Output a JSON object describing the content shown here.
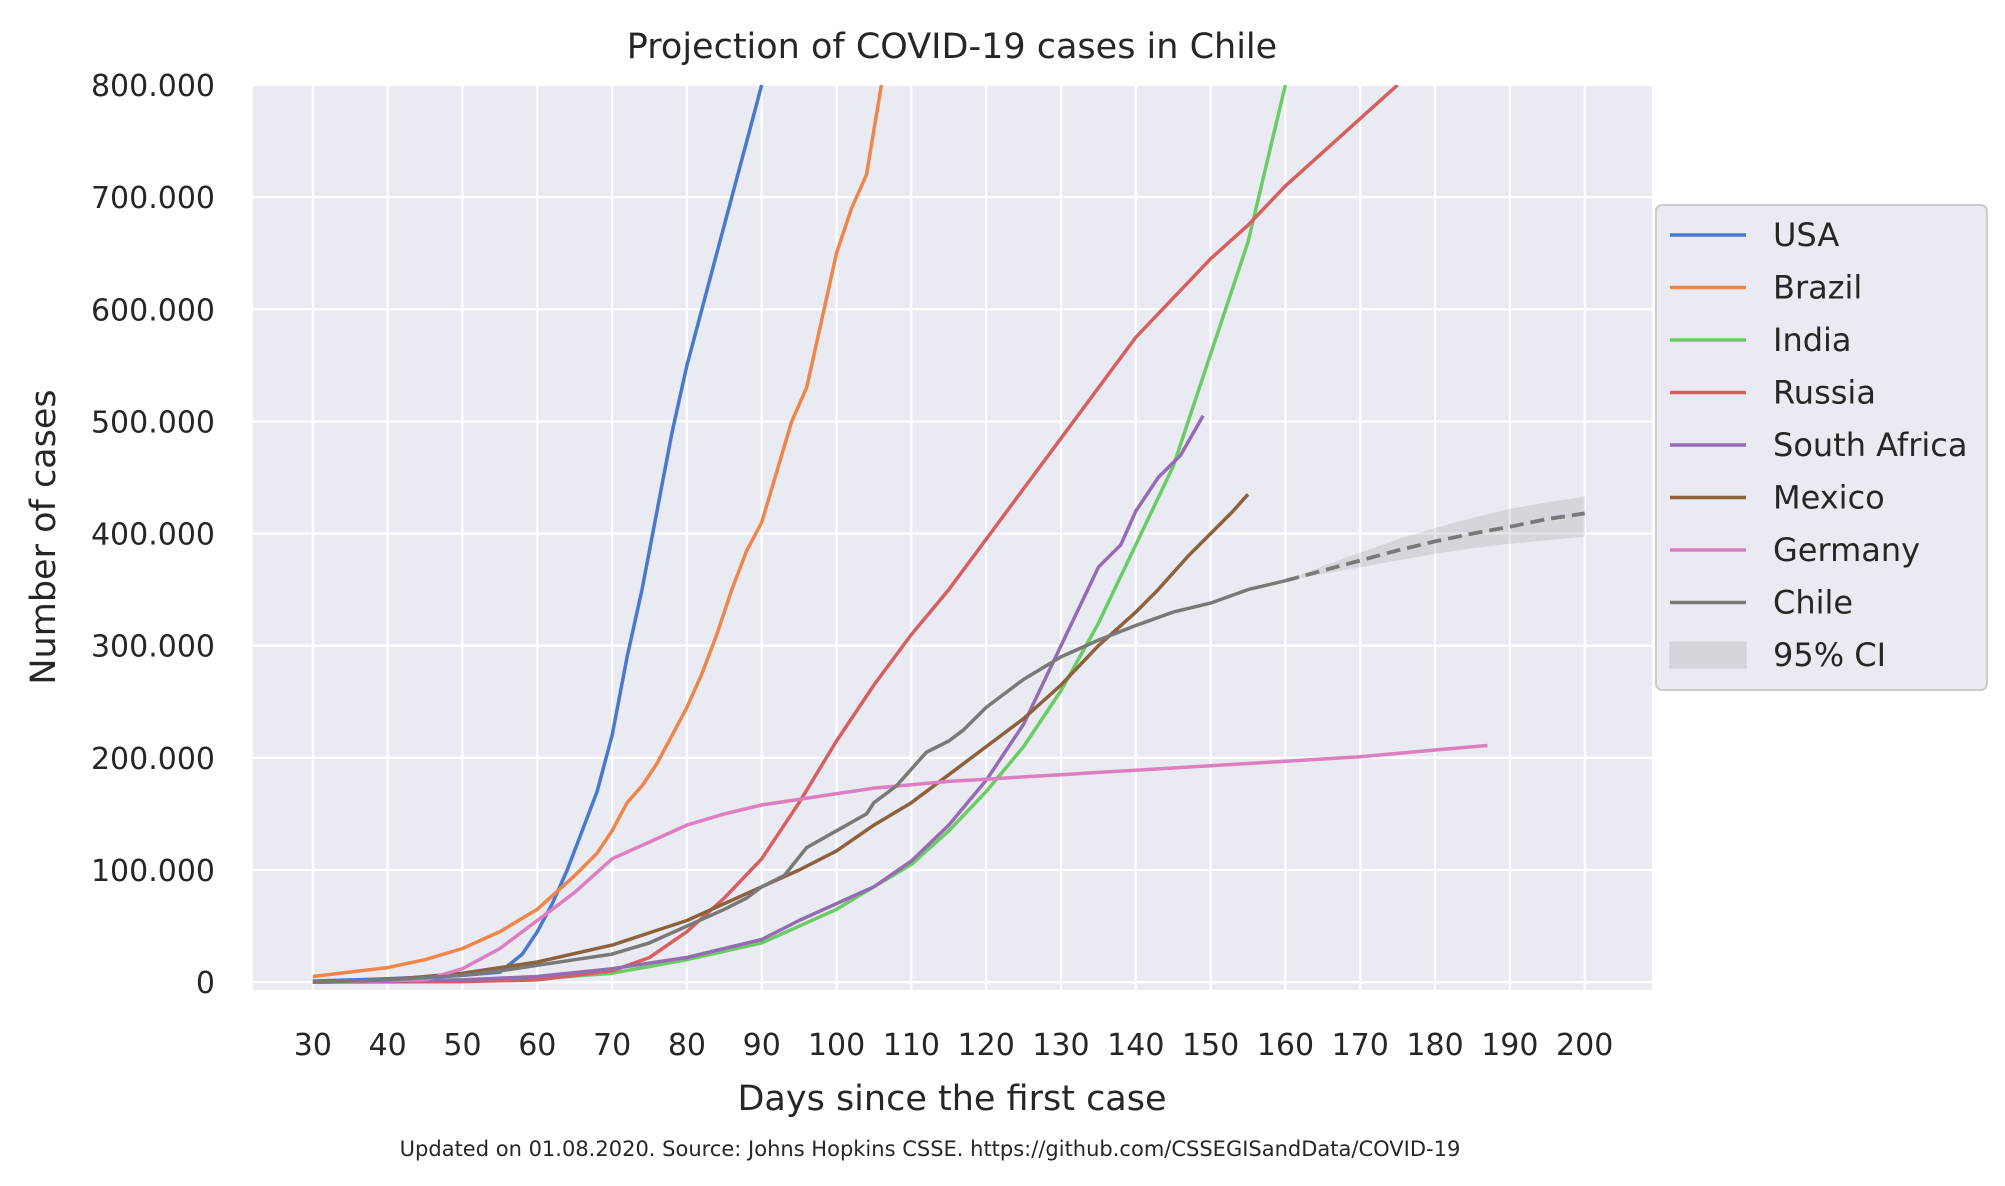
{
  "chart_data": {
    "type": "line",
    "title": "Projection of COVID-19 cases in Chile",
    "xlabel": "Days since the first case",
    "ylabel": "Number of cases",
    "footnote": "Updated on 01.08.2020. Source: Johns Hopkins CSSE. https://github.com/CSSEGISandData/COVID-19",
    "xlim": [
      22,
      209
    ],
    "ylim": [
      -7000,
      800000
    ],
    "x_ticks": [
      30,
      40,
      50,
      60,
      70,
      80,
      90,
      100,
      110,
      120,
      130,
      140,
      150,
      160,
      170,
      180,
      190,
      200
    ],
    "x_tick_labels": [
      "30",
      "40",
      "50",
      "60",
      "70",
      "80",
      "90",
      "100",
      "110",
      "120",
      "130",
      "140",
      "150",
      "160",
      "170",
      "180",
      "190",
      "200"
    ],
    "y_ticks": [
      0,
      100000,
      200000,
      300000,
      400000,
      500000,
      600000,
      700000,
      800000
    ],
    "y_tick_labels": [
      "0",
      "100.000",
      "200.000",
      "300.000",
      "400.000",
      "500.000",
      "600.000",
      "700.000",
      "800.000"
    ],
    "grid": true,
    "legend_position": "right-outside",
    "series": [
      {
        "name": "USA",
        "color": "#4878d0",
        "x": [
          30,
          40,
          50,
          55,
          58,
          60,
          62,
          64,
          66,
          68,
          70,
          72,
          74,
          76,
          78,
          80,
          82,
          84,
          86,
          88,
          90
        ],
        "y": [
          1000,
          3000,
          6000,
          9000,
          25000,
          45000,
          70000,
          100000,
          135000,
          170000,
          220000,
          290000,
          350000,
          420000,
          490000,
          550000,
          600000,
          650000,
          700000,
          750000,
          800000
        ]
      },
      {
        "name": "Brazil",
        "color": "#ee854a",
        "x": [
          30,
          40,
          45,
          50,
          55,
          60,
          65,
          68,
          70,
          72,
          74,
          76,
          78,
          80,
          82,
          84,
          86,
          88,
          90,
          92,
          94,
          96,
          98,
          100,
          102,
          104,
          106
        ],
        "y": [
          5000,
          13000,
          20000,
          30000,
          45000,
          65000,
          95000,
          115000,
          135000,
          160000,
          175000,
          195000,
          220000,
          245000,
          275000,
          310000,
          350000,
          385000,
          410000,
          455000,
          500000,
          530000,
          590000,
          650000,
          690000,
          720000,
          800000
        ]
      },
      {
        "name": "India",
        "color": "#6acc64",
        "x": [
          30,
          60,
          70,
          80,
          90,
          95,
          100,
          105,
          110,
          115,
          120,
          125,
          130,
          135,
          140,
          145,
          150,
          155,
          160
        ],
        "y": [
          0,
          3000,
          8000,
          20000,
          35000,
          50000,
          65000,
          85000,
          105000,
          135000,
          170000,
          210000,
          260000,
          320000,
          390000,
          460000,
          560000,
          660000,
          800000
        ]
      },
      {
        "name": "Russia",
        "color": "#d65f5f",
        "x": [
          30,
          50,
          60,
          70,
          75,
          80,
          85,
          90,
          95,
          100,
          105,
          110,
          115,
          120,
          125,
          130,
          135,
          140,
          145,
          150,
          155,
          160,
          165,
          170,
          175
        ],
        "y": [
          0,
          500,
          2000,
          10000,
          22000,
          45000,
          75000,
          110000,
          160000,
          215000,
          265000,
          310000,
          350000,
          395000,
          440000,
          485000,
          530000,
          575000,
          610000,
          645000,
          675000,
          710000,
          740000,
          770000,
          800000
        ]
      },
      {
        "name": "South Africa",
        "color": "#956cb4",
        "x": [
          30,
          50,
          60,
          70,
          80,
          90,
          95,
          100,
          105,
          110,
          115,
          120,
          125,
          130,
          135,
          138,
          140,
          143,
          146,
          149
        ],
        "y": [
          0,
          2000,
          5000,
          12000,
          22000,
          38000,
          55000,
          70000,
          85000,
          108000,
          140000,
          180000,
          230000,
          300000,
          370000,
          390000,
          420000,
          450000,
          470000,
          505000
        ]
      },
      {
        "name": "Mexico",
        "color": "#8c613c",
        "x": [
          30,
          40,
          50,
          60,
          70,
          80,
          90,
          95,
          100,
          105,
          110,
          115,
          120,
          125,
          130,
          135,
          140,
          143,
          147,
          150,
          153,
          155
        ],
        "y": [
          0,
          2000,
          8000,
          18000,
          33000,
          55000,
          85000,
          100000,
          117000,
          140000,
          160000,
          185000,
          210000,
          235000,
          265000,
          300000,
          330000,
          350000,
          380000,
          400000,
          420000,
          435000
        ]
      },
      {
        "name": "Germany",
        "color": "#dc7ec0",
        "x": [
          30,
          45,
          50,
          55,
          60,
          62,
          65,
          70,
          75,
          80,
          85,
          90,
          95,
          100,
          105,
          110,
          115,
          120,
          125,
          130,
          135,
          140,
          145,
          150,
          155,
          160,
          165,
          170,
          175,
          180,
          187
        ],
        "y": [
          0,
          2000,
          12000,
          30000,
          55000,
          65000,
          80000,
          110000,
          125000,
          140000,
          150000,
          158000,
          163000,
          168000,
          173000,
          176000,
          179000,
          181000,
          183000,
          185000,
          187000,
          189000,
          191000,
          193000,
          195000,
          197000,
          199000,
          201000,
          204000,
          207000,
          211000
        ]
      },
      {
        "name": "Chile",
        "color": "#797979",
        "x": [
          30,
          40,
          50,
          55,
          60,
          65,
          70,
          75,
          80,
          85,
          88,
          90,
          93,
          96,
          100,
          104,
          105,
          108,
          110,
          112,
          115,
          117,
          120,
          125,
          130,
          135,
          140,
          145,
          150,
          155,
          160
        ],
        "y": [
          0,
          2000,
          6000,
          10000,
          15000,
          20000,
          25000,
          35000,
          50000,
          65000,
          75000,
          85000,
          95000,
          120000,
          135000,
          150000,
          160000,
          175000,
          190000,
          205000,
          215000,
          225000,
          245000,
          270000,
          290000,
          305000,
          318000,
          330000,
          338000,
          350000,
          358000
        ]
      }
    ],
    "projection": {
      "name": "Chile",
      "color": "#797979",
      "style": "dashed",
      "x": [
        160,
        165,
        170,
        175,
        180,
        185,
        190,
        195,
        200
      ],
      "y": [
        358000,
        367000,
        376000,
        385000,
        393000,
        400000,
        406000,
        413000,
        418000
      ],
      "ci_name": "95% CI",
      "ci_lower": [
        358000,
        364000,
        370000,
        376000,
        382000,
        387000,
        391000,
        394000,
        397000
      ],
      "ci_upper": [
        358000,
        371000,
        383000,
        395000,
        405000,
        414000,
        422000,
        428000,
        433000
      ]
    },
    "legend": [
      "USA",
      "Brazil",
      "India",
      "Russia",
      "South Africa",
      "Mexico",
      "Germany",
      "Chile",
      "95% CI"
    ]
  }
}
